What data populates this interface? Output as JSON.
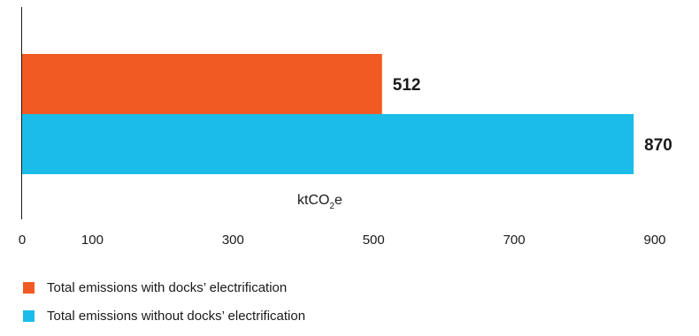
{
  "chart_data": {
    "type": "bar",
    "orientation": "horizontal",
    "categories": [
      ""
    ],
    "series": [
      {
        "name": "Total emissions with docks’ electrification",
        "values": [
          512
        ],
        "color": "#F15A22"
      },
      {
        "name": "Total emissions without docks’ electrification",
        "values": [
          870
        ],
        "color": "#1BBDE8"
      }
    ],
    "data_labels": [
      "512",
      "870"
    ],
    "unit_label": {
      "main": "ktCO",
      "sub": "2",
      "tail": "e"
    },
    "xticks": [
      0,
      100,
      300,
      500,
      700,
      900
    ],
    "xlim": [
      0,
      900
    ],
    "grid": false,
    "legend_position": "bottom-left"
  }
}
